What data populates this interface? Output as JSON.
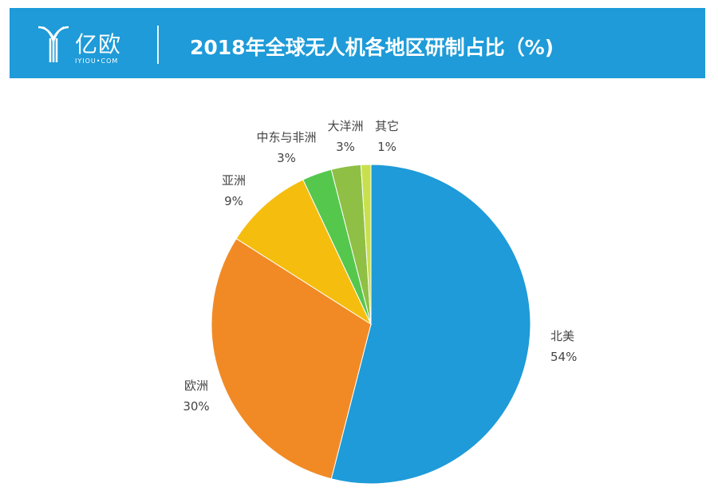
{
  "header": {
    "logo_cn": "亿欧",
    "logo_en": "IYIOU•COM",
    "title": "2018年全球无人机各地区研制占比（%)"
  },
  "chart_data": {
    "type": "pie",
    "title": "2018年全球无人机各地区研制占比（%)",
    "slices": [
      {
        "label": "北美",
        "value": 54,
        "display": "54%",
        "color": "#1e9bd8"
      },
      {
        "label": "欧洲",
        "value": 30,
        "display": "30%",
        "color": "#f18a24"
      },
      {
        "label": "亚洲",
        "value": 9,
        "display": "9%",
        "color": "#f5bd0e"
      },
      {
        "label": "中东与非洲",
        "value": 3,
        "display": "3%",
        "color": "#55c74d"
      },
      {
        "label": "大洋洲",
        "value": 3,
        "display": "3%",
        "color": "#8fbf45"
      },
      {
        "label": "其它",
        "value": 1,
        "display": "1%",
        "color": "#c8e04e"
      }
    ]
  }
}
